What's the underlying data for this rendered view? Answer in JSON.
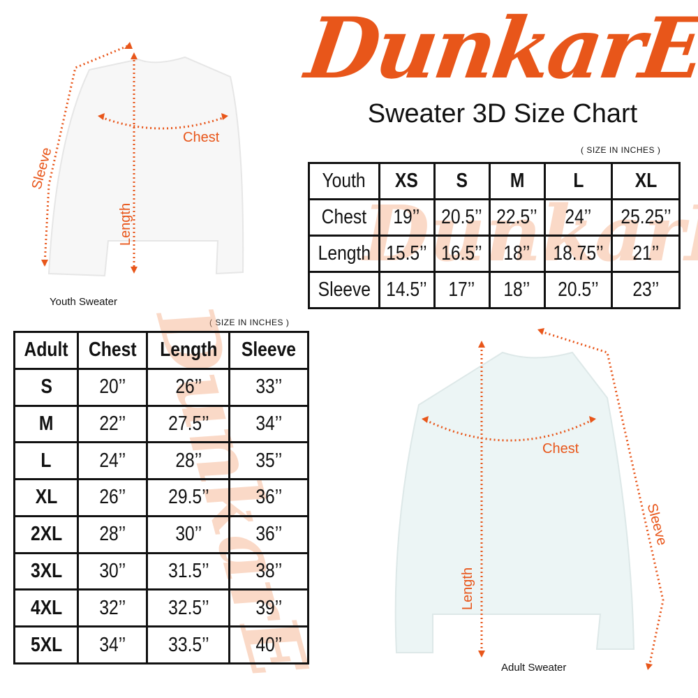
{
  "brand": {
    "logo_text": "DunkarE",
    "accent_color": "#e8561a"
  },
  "title": "Sweater 3D Size Chart",
  "youth": {
    "note": "( SIZE IN INCHES )",
    "caption": "Youth Sweater",
    "diagram_labels": {
      "sleeve": "Sleeve",
      "chest": "Chest",
      "length": "Length"
    },
    "header": [
      "Youth",
      "XS",
      "S",
      "M",
      "L",
      "XL"
    ],
    "rows": [
      [
        "Chest",
        "19’’",
        "20.5’’",
        "22.5’’",
        "24’’",
        "25.25’’"
      ],
      [
        "Length",
        "15.5’’",
        "16.5’’",
        "18’’",
        "18.75’’",
        "21’’"
      ],
      [
        "Sleeve",
        "14.5’’",
        "17’’",
        "18’’",
        "20.5’’",
        "23’’"
      ]
    ]
  },
  "adult": {
    "note": "( SIZE IN INCHES )",
    "caption": "Adult Sweater",
    "diagram_labels": {
      "sleeve": "Sleeve",
      "chest": "Chest",
      "length": "Length"
    },
    "header": [
      "Adult",
      "Chest",
      "Length",
      "Sleeve"
    ],
    "rows": [
      [
        "S",
        "20’’",
        "26’’",
        "33’’"
      ],
      [
        "M",
        "22’’",
        "27.5’’",
        "34’’"
      ],
      [
        "L",
        "24’’",
        "28’’",
        "35’’"
      ],
      [
        "XL",
        "26’’",
        "29.5’’",
        "36’’"
      ],
      [
        "2XL",
        "28’’",
        "30’’",
        "36’’"
      ],
      [
        "3XL",
        "30’’",
        "31.5’’",
        "38’’"
      ],
      [
        "4XL",
        "32’’",
        "32.5’’",
        "39’’"
      ],
      [
        "5XL",
        "34’’",
        "33.5’’",
        "40’’"
      ]
    ]
  }
}
